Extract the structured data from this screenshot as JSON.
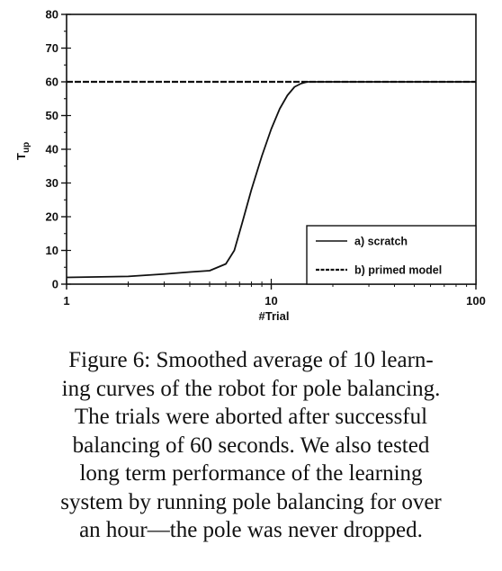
{
  "chart_data": {
    "type": "line",
    "xscale": "log",
    "xlim": [
      1,
      100
    ],
    "ylim": [
      0,
      80
    ],
    "xticks": [
      "1",
      "10",
      "100"
    ],
    "yticks": [
      "0",
      "10",
      "20",
      "30",
      "40",
      "50",
      "60",
      "70",
      "80"
    ],
    "xlabel": "#Trial",
    "ylabel": "T",
    "ylabel_sub": "up",
    "grid": false,
    "legend_position": "bottom-right",
    "series": [
      {
        "name": "a) scratch",
        "style": "solid",
        "x": [
          1,
          2,
          3,
          4,
          5,
          6,
          6.6,
          7.2,
          8,
          9,
          10,
          11,
          12,
          13,
          14,
          15,
          16,
          20,
          50,
          100
        ],
        "y": [
          2,
          2.3,
          3,
          3.6,
          4,
          6,
          10,
          18,
          28,
          38,
          46,
          52,
          56,
          58.5,
          59.5,
          60,
          60,
          60,
          60,
          60
        ]
      },
      {
        "name": "b) primed model",
        "style": "dashed",
        "x": [
          1,
          100
        ],
        "y": [
          60,
          60
        ]
      }
    ]
  },
  "caption": {
    "lines": [
      "Figure 6: Smoothed average of 10 learn-",
      "ing curves of the robot for pole balancing.",
      "The trials were aborted after successful",
      "balancing of 60 seconds. We also tested",
      "long term performance of the learning",
      "system by running pole balancing for over",
      "an hour—the pole was never dropped."
    ]
  },
  "colors": {
    "ink": "#111111",
    "background": "#ffffff"
  }
}
